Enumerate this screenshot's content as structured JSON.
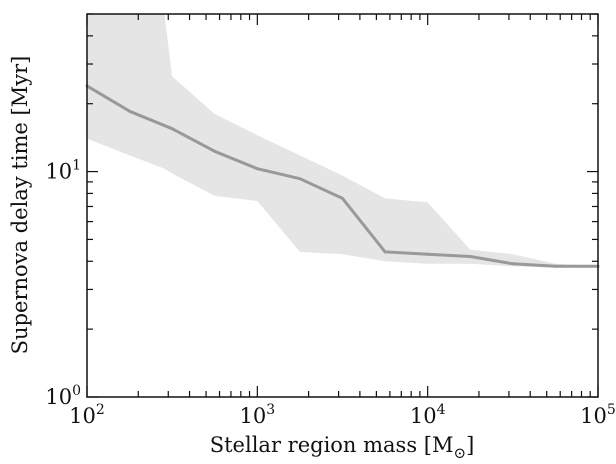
{
  "chart_data": {
    "type": "area",
    "xlabel": "Stellar region mass [M",
    "xlabel_unit_symbol": "⊙",
    "xlabel_close": "]",
    "ylabel": "Supernova delay time [Myr]",
    "xscale": "log",
    "yscale": "log",
    "xlim": [
      100,
      100000
    ],
    "ylim": [
      1,
      50
    ],
    "x_ticks": [
      {
        "base": "10",
        "exp": "2",
        "value": 100
      },
      {
        "base": "10",
        "exp": "3",
        "value": 1000
      },
      {
        "base": "10",
        "exp": "4",
        "value": 10000
      },
      {
        "base": "10",
        "exp": "5",
        "value": 100000
      }
    ],
    "y_ticks": [
      {
        "base": "10",
        "exp": "0",
        "value": 1
      },
      {
        "base": "10",
        "exp": "1",
        "value": 10
      }
    ],
    "grid": false,
    "legend": "none",
    "series": [
      {
        "kind": "line",
        "color": "#999999",
        "x": [
          100,
          178,
          316,
          562,
          1000,
          1778,
          3162,
          5623,
          10000,
          17783,
          31623,
          56234,
          100000
        ],
        "y": [
          24.0,
          18.5,
          15.5,
          12.3,
          10.3,
          9.3,
          7.6,
          4.4,
          4.3,
          4.2,
          3.9,
          3.8,
          3.8
        ]
      }
    ],
    "band": {
      "color": "#e5e5e5",
      "x": [
        100,
        178,
        285,
        316,
        562,
        1000,
        1778,
        3162,
        5623,
        10000,
        17783,
        31623,
        56234,
        100000
      ],
      "upper": [
        50,
        50,
        50,
        26.5,
        18.0,
        14.5,
        11.8,
        9.6,
        7.6,
        7.3,
        4.5,
        4.3,
        3.9,
        3.8
      ],
      "lower": [
        14.0,
        11.8,
        10.3,
        9.8,
        7.8,
        7.4,
        4.4,
        4.3,
        4.0,
        3.9,
        3.9,
        3.8,
        3.75,
        3.75
      ]
    }
  }
}
